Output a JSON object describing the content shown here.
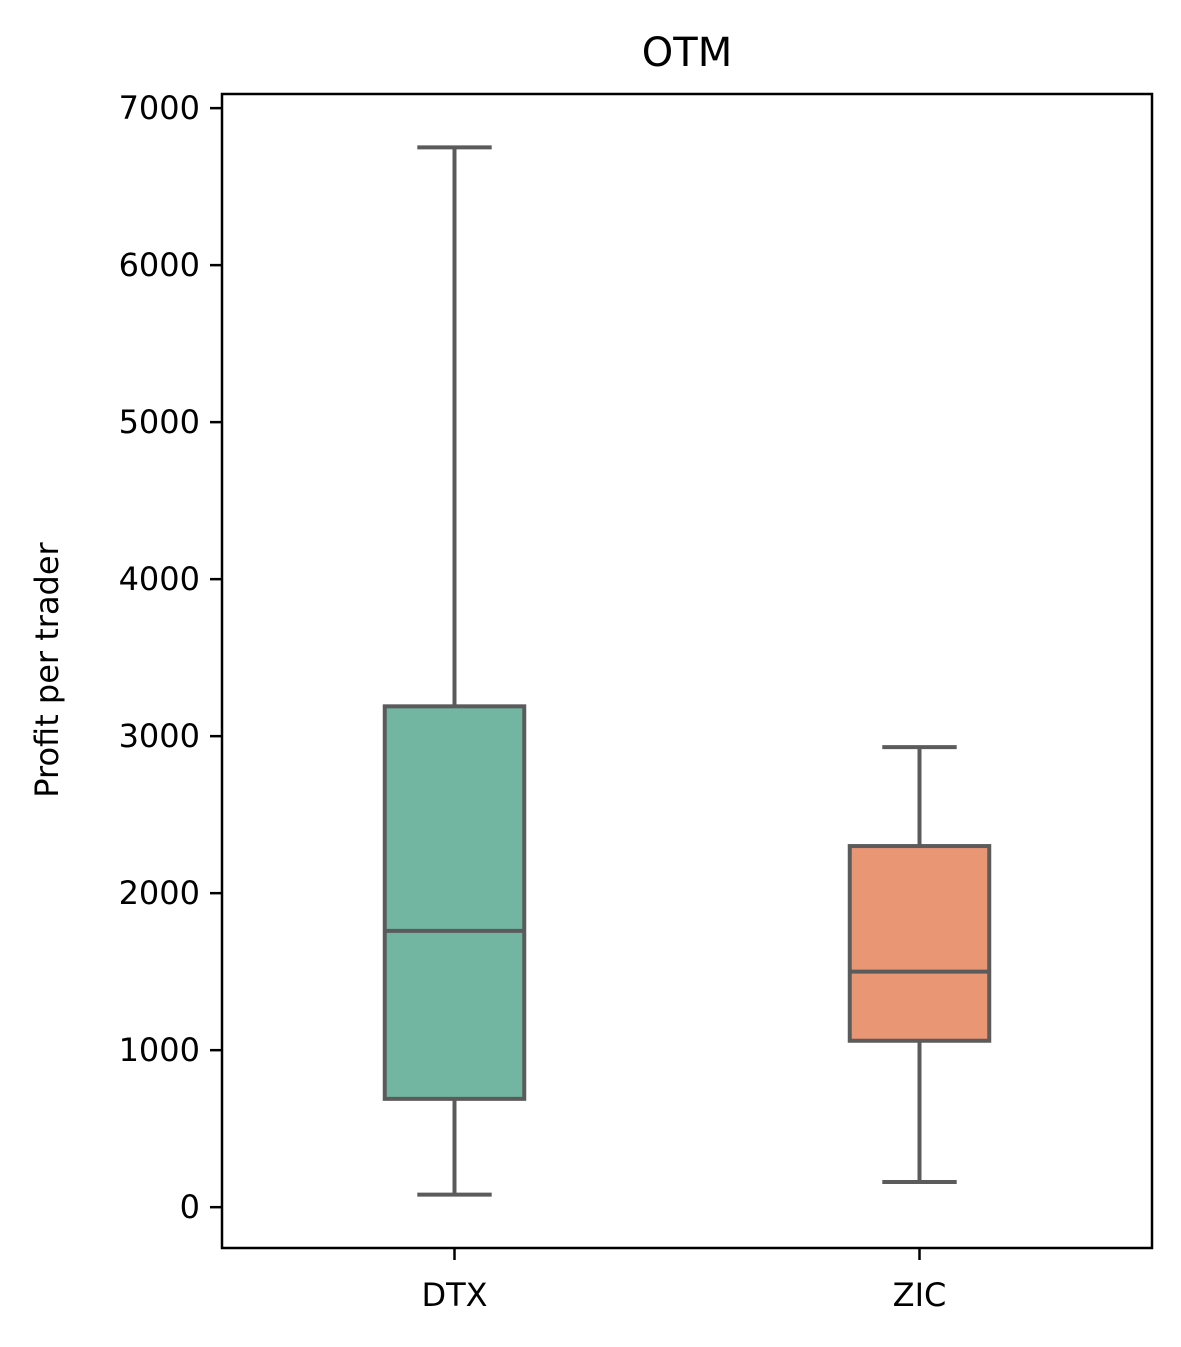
{
  "chart_data": {
    "type": "box",
    "title": "OTM",
    "xlabel": "",
    "ylabel": "Profit per trader",
    "categories": [
      "DTX",
      "ZIC"
    ],
    "ylim": [
      -260,
      7090
    ],
    "yticks": [
      0,
      1000,
      2000,
      3000,
      4000,
      5000,
      6000,
      7000
    ],
    "ytick_labels": [
      "0",
      "1000",
      "2000",
      "3000",
      "4000",
      "5000",
      "6000",
      "7000"
    ],
    "grid": false,
    "boxes": [
      {
        "category": "DTX",
        "whisker_low": 80,
        "q1": 690,
        "median": 1760,
        "q3": 3190,
        "whisker_high": 6750,
        "color": "#72b6a1"
      },
      {
        "category": "ZIC",
        "whisker_low": 160,
        "q1": 1060,
        "median": 1500,
        "q3": 2300,
        "whisker_high": 2930,
        "color": "#e99675"
      }
    ],
    "line_color": "#5b5b5b"
  }
}
